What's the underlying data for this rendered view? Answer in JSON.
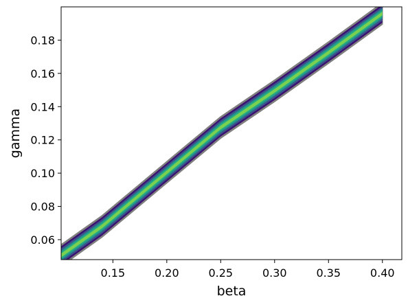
{
  "chart_data": {
    "type": "contour",
    "xlabel": "beta",
    "ylabel": "gamma",
    "xlim": [
      0.102,
      0.418
    ],
    "ylim": [
      0.048,
      0.2
    ],
    "x_ticks": [
      0.15,
      0.2,
      0.25,
      0.3,
      0.35,
      0.4
    ],
    "x_tick_labels": [
      "0.15",
      "0.20",
      "0.25",
      "0.30",
      "0.35",
      "0.40"
    ],
    "y_ticks": [
      0.06,
      0.08,
      0.1,
      0.12,
      0.14,
      0.16,
      0.18
    ],
    "y_tick_labels": [
      "0.06",
      "0.08",
      "0.10",
      "0.12",
      "0.14",
      "0.16",
      "0.18"
    ],
    "grid": false,
    "ridge": [
      {
        "beta": 0.102,
        "gamma": 0.0505
      },
      {
        "beta": 0.14,
        "gamma": 0.068
      },
      {
        "beta": 0.2,
        "gamma": 0.1005
      },
      {
        "beta": 0.25,
        "gamma": 0.1275
      },
      {
        "beta": 0.3,
        "gamma": 0.1495
      },
      {
        "beta": 0.35,
        "gamma": 0.1725
      },
      {
        "beta": 0.4,
        "gamma": 0.196
      }
    ],
    "contour_levels": [
      {
        "level": 1,
        "color": "#808080",
        "half_width_gamma": 0.0065
      },
      {
        "level": 2,
        "color": "#3b0f70",
        "half_width_gamma": 0.0055
      },
      {
        "level": 3,
        "color": "#3b528b",
        "half_width_gamma": 0.0043
      },
      {
        "level": 4,
        "color": "#21918c",
        "half_width_gamma": 0.003
      },
      {
        "level": 5,
        "color": "#27ad81",
        "half_width_gamma": 0.002
      },
      {
        "level": 6,
        "color": "#7ad151",
        "half_width_gamma": 0.0011
      }
    ]
  }
}
